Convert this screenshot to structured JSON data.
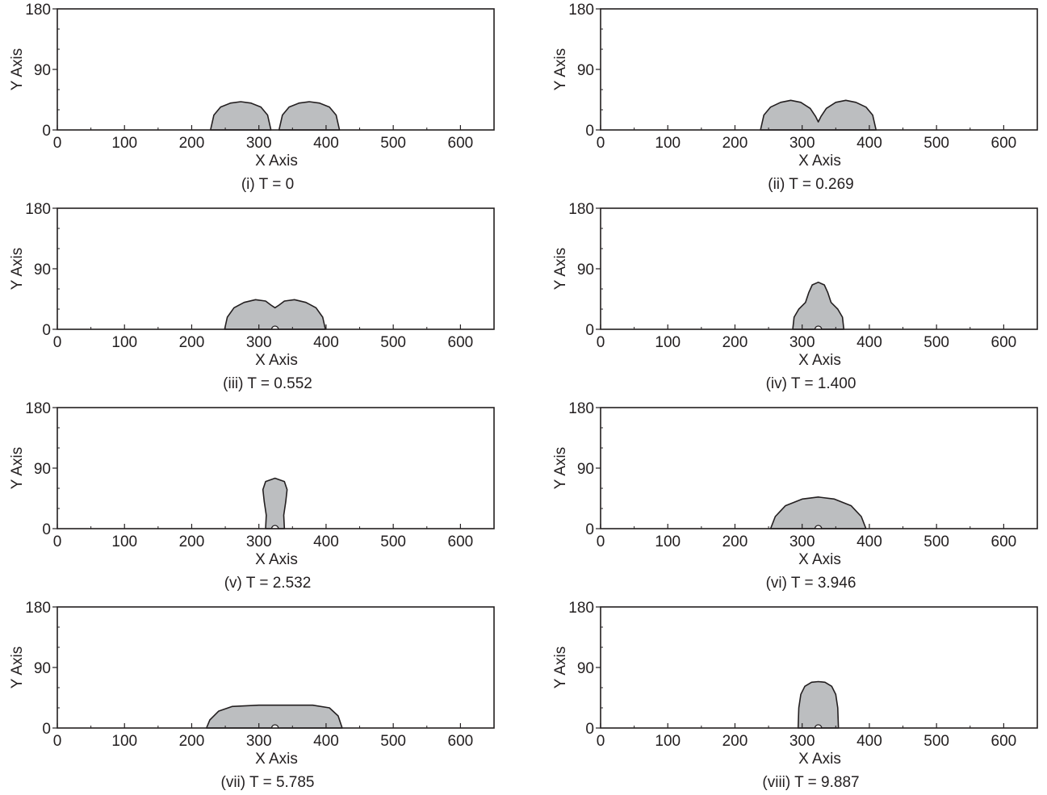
{
  "colors": {
    "fill": "#bcbec0",
    "stroke": "#231f20",
    "axis": "#231f20",
    "background": "#ffffff"
  },
  "chart_data": [
    {
      "type": "area",
      "caption": "(i) T = 0",
      "xlabel": "X Axis",
      "ylabel": "Y Axis",
      "xlim": [
        0,
        650
      ],
      "ylim": [
        0,
        180
      ],
      "xticks": [
        "0",
        "100",
        "200",
        "300",
        "400",
        "500",
        "600"
      ],
      "yticks": [
        "0",
        "90",
        "180"
      ],
      "grid": false,
      "droplets": [
        {
          "x": [
            228,
            233,
            243,
            258,
            273,
            288,
            303,
            313,
            318
          ],
          "y": [
            0,
            22,
            34,
            40,
            42,
            40,
            34,
            22,
            0
          ]
        },
        {
          "x": [
            330,
            335,
            345,
            360,
            375,
            390,
            405,
            415,
            420
          ],
          "y": [
            0,
            22,
            34,
            40,
            42,
            40,
            34,
            22,
            0
          ]
        }
      ]
    },
    {
      "type": "area",
      "caption": "(ii) T = 0.269",
      "xlabel": "X Axis",
      "ylabel": "Y Axis",
      "xlim": [
        0,
        650
      ],
      "ylim": [
        0,
        180
      ],
      "xticks": [
        "0",
        "100",
        "200",
        "300",
        "400",
        "500",
        "600"
      ],
      "yticks": [
        "0",
        "90",
        "180"
      ],
      "grid": false,
      "droplets": [
        {
          "x": [
            238,
            243,
            253,
            268,
            283,
            298,
            312,
            320,
            324,
            328,
            336,
            350,
            365,
            380,
            395,
            405,
            410
          ],
          "y": [
            0,
            22,
            34,
            41,
            44,
            41,
            32,
            20,
            12,
            20,
            32,
            41,
            44,
            41,
            34,
            22,
            0
          ]
        }
      ]
    },
    {
      "type": "area",
      "caption": "(iii) T = 0.552",
      "xlabel": "X Axis",
      "ylabel": "Y Axis",
      "xlim": [
        0,
        650
      ],
      "ylim": [
        0,
        180
      ],
      "xticks": [
        "0",
        "100",
        "200",
        "300",
        "400",
        "500",
        "600"
      ],
      "yticks": [
        "0",
        "90",
        "180"
      ],
      "grid": false,
      "droplets": [
        {
          "x": [
            249,
            253,
            263,
            278,
            295,
            310,
            318,
            324,
            330,
            338,
            353,
            370,
            385,
            395,
            399
          ],
          "y": [
            0,
            18,
            32,
            40,
            44,
            42,
            36,
            32,
            36,
            42,
            44,
            40,
            32,
            18,
            0
          ]
        }
      ]
    },
    {
      "type": "area",
      "caption": "(iv) T = 1.400",
      "xlabel": "X Axis",
      "ylabel": "Y Axis",
      "xlim": [
        0,
        650
      ],
      "ylim": [
        0,
        180
      ],
      "xticks": [
        "0",
        "100",
        "200",
        "300",
        "400",
        "500",
        "600"
      ],
      "yticks": [
        "0",
        "90",
        "180"
      ],
      "grid": false,
      "droplets": [
        {
          "x": [
            286,
            288,
            295,
            305,
            310,
            315,
            324,
            333,
            338,
            343,
            353,
            360,
            362
          ],
          "y": [
            0,
            18,
            30,
            40,
            55,
            66,
            70,
            66,
            55,
            40,
            30,
            18,
            0
          ]
        }
      ]
    },
    {
      "type": "area",
      "caption": "(v) T = 2.532",
      "xlabel": "X Axis",
      "ylabel": "Y Axis",
      "xlim": [
        0,
        650
      ],
      "ylim": [
        0,
        180
      ],
      "xticks": [
        "0",
        "100",
        "200",
        "300",
        "400",
        "500",
        "600"
      ],
      "yticks": [
        "0",
        "90",
        "180"
      ],
      "grid": false,
      "droplets": [
        {
          "x": [
            310,
            311,
            308,
            306,
            310,
            324,
            338,
            342,
            340,
            337,
            338
          ],
          "y": [
            0,
            20,
            40,
            58,
            70,
            75,
            70,
            58,
            40,
            20,
            0
          ]
        }
      ]
    },
    {
      "type": "area",
      "caption": "(vi) T = 3.946",
      "xlabel": "X Axis",
      "ylabel": "Y Axis",
      "xlim": [
        0,
        650
      ],
      "ylim": [
        0,
        180
      ],
      "xticks": [
        "0",
        "100",
        "200",
        "300",
        "400",
        "500",
        "600"
      ],
      "yticks": [
        "0",
        "90",
        "180"
      ],
      "grid": false,
      "droplets": [
        {
          "x": [
            253,
            260,
            275,
            300,
            324,
            348,
            373,
            388,
            395
          ],
          "y": [
            0,
            18,
            34,
            44,
            47,
            44,
            34,
            18,
            0
          ]
        }
      ]
    },
    {
      "type": "area",
      "caption": "(vii) T = 5.785",
      "xlabel": "X Axis",
      "ylabel": "Y Axis",
      "xlim": [
        0,
        650
      ],
      "ylim": [
        0,
        180
      ],
      "xticks": [
        "0",
        "100",
        "200",
        "300",
        "400",
        "500",
        "600"
      ],
      "yticks": [
        "0",
        "90",
        "180"
      ],
      "grid": false,
      "droplets": [
        {
          "x": [
            222,
            227,
            240,
            260,
            300,
            340,
            380,
            405,
            418,
            424
          ],
          "y": [
            0,
            12,
            25,
            32,
            34,
            34,
            34,
            30,
            18,
            0
          ]
        }
      ]
    },
    {
      "type": "area",
      "caption": "(viii) T = 9.887",
      "xlabel": "X Axis",
      "ylabel": "Y Axis",
      "xlim": [
        0,
        650
      ],
      "ylim": [
        0,
        180
      ],
      "xticks": [
        "0",
        "100",
        "200",
        "300",
        "400",
        "500",
        "600"
      ],
      "yticks": [
        "0",
        "90",
        "180"
      ],
      "grid": false,
      "droplets": [
        {
          "x": [
            294,
            295,
            298,
            304,
            314,
            324,
            334,
            344,
            350,
            353,
            354
          ],
          "y": [
            0,
            30,
            50,
            62,
            68,
            69,
            68,
            62,
            50,
            30,
            0
          ]
        }
      ]
    }
  ]
}
